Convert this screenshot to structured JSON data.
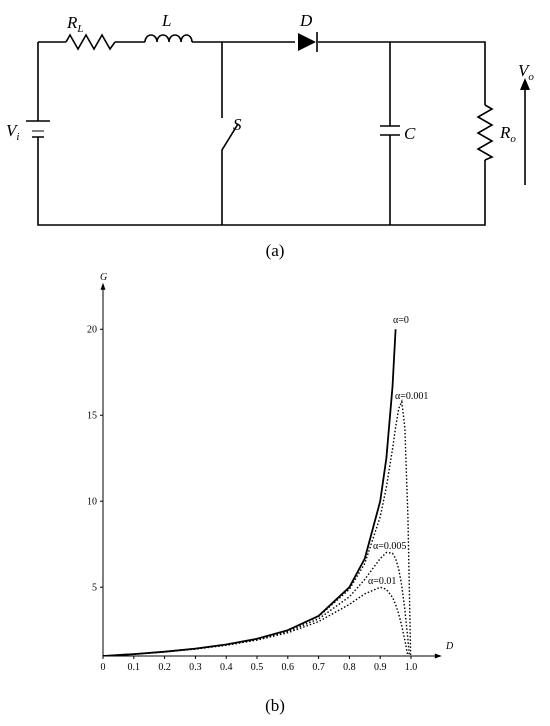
{
  "circuit": {
    "caption": "(a)",
    "labels": [
      {
        "main": "R",
        "sub": "L"
      },
      {
        "main": "L"
      },
      {
        "main": "D"
      },
      {
        "main": "V",
        "sub": "i"
      },
      {
        "main": "S"
      },
      {
        "main": "C"
      },
      {
        "main": "R",
        "sub": "o"
      },
      {
        "main": "V",
        "sub": "o"
      }
    ]
  },
  "chart_data": {
    "type": "line",
    "caption": "(b)",
    "x_label": "D",
    "y_label": "G",
    "x": [
      0,
      0.1,
      0.2,
      0.3,
      0.4,
      0.5,
      0.6,
      0.7,
      0.8,
      0.85,
      0.9,
      0.92,
      0.94,
      0.95,
      0.96,
      0.97,
      0.98,
      0.99,
      1.0
    ],
    "series": [
      {
        "name": "α=0",
        "color": "#000000",
        "style": "solid",
        "values": [
          1,
          1.111,
          1.25,
          1.429,
          1.667,
          2,
          2.5,
          3.333,
          5,
          6.667,
          10,
          12.5,
          16.667,
          20,
          null,
          null,
          null,
          null,
          null
        ]
      },
      {
        "name": "α=0.001",
        "color": "#000000",
        "style": "dotted",
        "values": [
          0.999,
          1.11,
          1.248,
          1.426,
          1.662,
          1.992,
          2.484,
          3.297,
          4.878,
          6.383,
          9.091,
          10.811,
          13.043,
          14.286,
          15.385,
          15.789,
          14.286,
          9.091,
          0
        ]
      },
      {
        "name": "α=0.005",
        "color": "#000000",
        "style": "dotted",
        "values": [
          0.995,
          1.104,
          1.24,
          1.414,
          1.644,
          1.961,
          2.424,
          3.158,
          4.444,
          5.455,
          6.667,
          7.018,
          6.977,
          6.667,
          6.061,
          5.085,
          3.704,
          1.961,
          0
        ]
      },
      {
        "name": "α=0.01",
        "color": "#000000",
        "style": "dotted",
        "values": [
          0.99,
          1.098,
          1.231,
          1.4,
          1.622,
          1.923,
          2.353,
          3,
          4,
          4.615,
          5,
          4.878,
          4.412,
          4,
          3.448,
          2.752,
          1.923,
          0.99,
          0
        ]
      }
    ],
    "xlim": [
      0,
      1.1
    ],
    "ylim": [
      1,
      22.7
    ],
    "xticks": [
      0,
      0.1,
      0.2,
      0.3,
      0.4,
      0.5,
      0.6,
      0.7,
      0.8,
      0.9,
      {
        "value": 1,
        "label": "1.0"
      }
    ],
    "yticks": [
      5,
      10,
      15,
      20
    ],
    "grid": false
  }
}
